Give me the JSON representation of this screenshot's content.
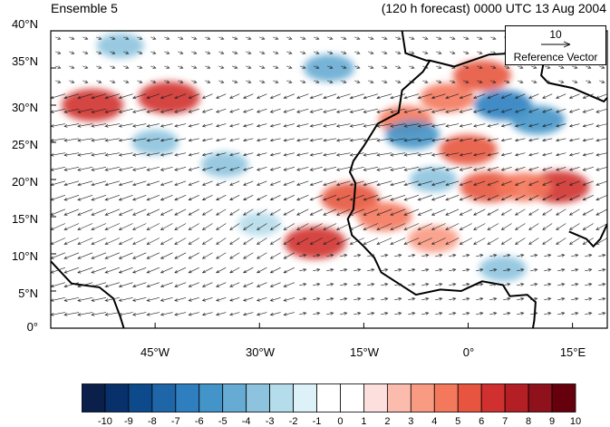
{
  "header": {
    "left_title": "Ensemble 5",
    "right_title": "(120 h forecast) 0000 UTC 13 Aug 2004"
  },
  "map": {
    "lat_range": [
      0,
      40
    ],
    "lon_range": [
      -60,
      20
    ],
    "y_tick_labels": [
      "40°N",
      "35°N",
      "30°N",
      "25°N",
      "20°N",
      "15°N",
      "10°N",
      "5°N",
      "0°"
    ],
    "y_tick_lats": [
      40,
      35,
      30,
      25,
      20,
      15,
      10,
      5,
      0
    ],
    "x_tick_labels": [
      "45°W",
      "30°W",
      "15°W",
      "0°",
      "15°E"
    ],
    "x_tick_lons": [
      -45,
      -30,
      -15,
      0,
      15
    ],
    "anomaly_cells": [
      {
        "lon": -54,
        "lat": 30,
        "value": 7
      },
      {
        "lon": -43,
        "lat": 31,
        "value": 7
      },
      {
        "lon": -22,
        "lat": 11.5,
        "value": 7
      },
      {
        "lon": -17,
        "lat": 17.5,
        "value": 6
      },
      {
        "lon": -12,
        "lat": 15,
        "value": 5
      },
      {
        "lon": -9,
        "lat": 28,
        "value": 5
      },
      {
        "lon": -3,
        "lat": 31,
        "value": 5
      },
      {
        "lon": 2,
        "lat": 34,
        "value": 6
      },
      {
        "lon": 0,
        "lat": 24,
        "value": 6
      },
      {
        "lon": 3,
        "lat": 19,
        "value": 6
      },
      {
        "lon": 13,
        "lat": 19,
        "value": 7
      },
      {
        "lon": 8,
        "lat": 19,
        "value": 5
      },
      {
        "lon": -5,
        "lat": 12,
        "value": 4
      },
      {
        "lon": 5,
        "lat": 30,
        "value": -6
      },
      {
        "lon": 10,
        "lat": 28,
        "value": -5
      },
      {
        "lon": -8,
        "lat": 26,
        "value": -5
      },
      {
        "lon": -20,
        "lat": 35,
        "value": -4
      },
      {
        "lon": -45,
        "lat": 25,
        "value": -3
      },
      {
        "lon": -35,
        "lat": 22,
        "value": -3
      },
      {
        "lon": -50,
        "lat": 38,
        "value": -3
      },
      {
        "lon": -30,
        "lat": 14,
        "value": -2
      },
      {
        "lon": 5,
        "lat": 8,
        "value": -3
      },
      {
        "lon": -5,
        "lat": 20,
        "value": -3
      }
    ],
    "coastline_lonlat": [
      [
        [
          -9.5,
          40
        ],
        [
          -9,
          37
        ],
        [
          -6,
          36
        ],
        [
          -5.5,
          36
        ],
        [
          -2,
          35.2
        ],
        [
          3,
          36.8
        ],
        [
          10,
          37.2
        ],
        [
          11,
          36.5
        ],
        [
          10.5,
          34
        ],
        [
          11.5,
          33
        ],
        [
          15,
          32.3
        ],
        [
          19.5,
          30.5
        ],
        [
          20,
          31
        ]
      ],
      [
        [
          -5.5,
          36
        ],
        [
          -6.5,
          34.5
        ],
        [
          -9.5,
          32
        ],
        [
          -10,
          29
        ],
        [
          -13,
          27.5
        ],
        [
          -15,
          24.5
        ],
        [
          -16.5,
          22.5
        ],
        [
          -17,
          21
        ],
        [
          -16.2,
          19.5
        ],
        [
          -16.5,
          16
        ],
        [
          -17.3,
          14.7
        ],
        [
          -16.7,
          12.5
        ],
        [
          -15,
          11
        ],
        [
          -13.5,
          9.5
        ],
        [
          -12.5,
          7.5
        ],
        [
          -10,
          6
        ],
        [
          -7.5,
          4.5
        ],
        [
          -4,
          5.2
        ],
        [
          -1,
          5
        ],
        [
          2,
          6.3
        ],
        [
          5,
          5.8
        ],
        [
          6,
          4.3
        ],
        [
          8.5,
          4.5
        ],
        [
          9.7,
          3.5
        ],
        [
          9.5,
          1
        ],
        [
          9.3,
          0
        ]
      ],
      [
        [
          20,
          14
        ],
        [
          19,
          12
        ],
        [
          18,
          11
        ],
        [
          17,
          12
        ],
        [
          14.5,
          13
        ]
      ],
      [
        [
          -60,
          9
        ],
        [
          -57,
          6
        ],
        [
          -53,
          5.5
        ],
        [
          -51,
          4
        ],
        [
          -50,
          1.5
        ],
        [
          -49.5,
          0
        ]
      ]
    ]
  },
  "reference_vector": {
    "magnitude": "10",
    "label": "Reference Vector"
  },
  "colorbar": {
    "labels": [
      "-10",
      "-9",
      "-8",
      "-7",
      "-6",
      "-5",
      "-4",
      "-3",
      "-2",
      "-1",
      "0",
      "1",
      "2",
      "3",
      "4",
      "5",
      "6",
      "7",
      "8",
      "9",
      "10"
    ],
    "colors": [
      "#0a1f4a",
      "#08306b",
      "#0d4a8c",
      "#1f66a8",
      "#2f7fc0",
      "#4394c8",
      "#66abd3",
      "#8dc3de",
      "#b5dcea",
      "#dcf1f8",
      "#ffffff",
      "#ffffff",
      "#fde0dd",
      "#fbbcad",
      "#f99a83",
      "#f4785c",
      "#e7543f",
      "#d0302f",
      "#b41e25",
      "#8e111c",
      "#67000d"
    ]
  }
}
